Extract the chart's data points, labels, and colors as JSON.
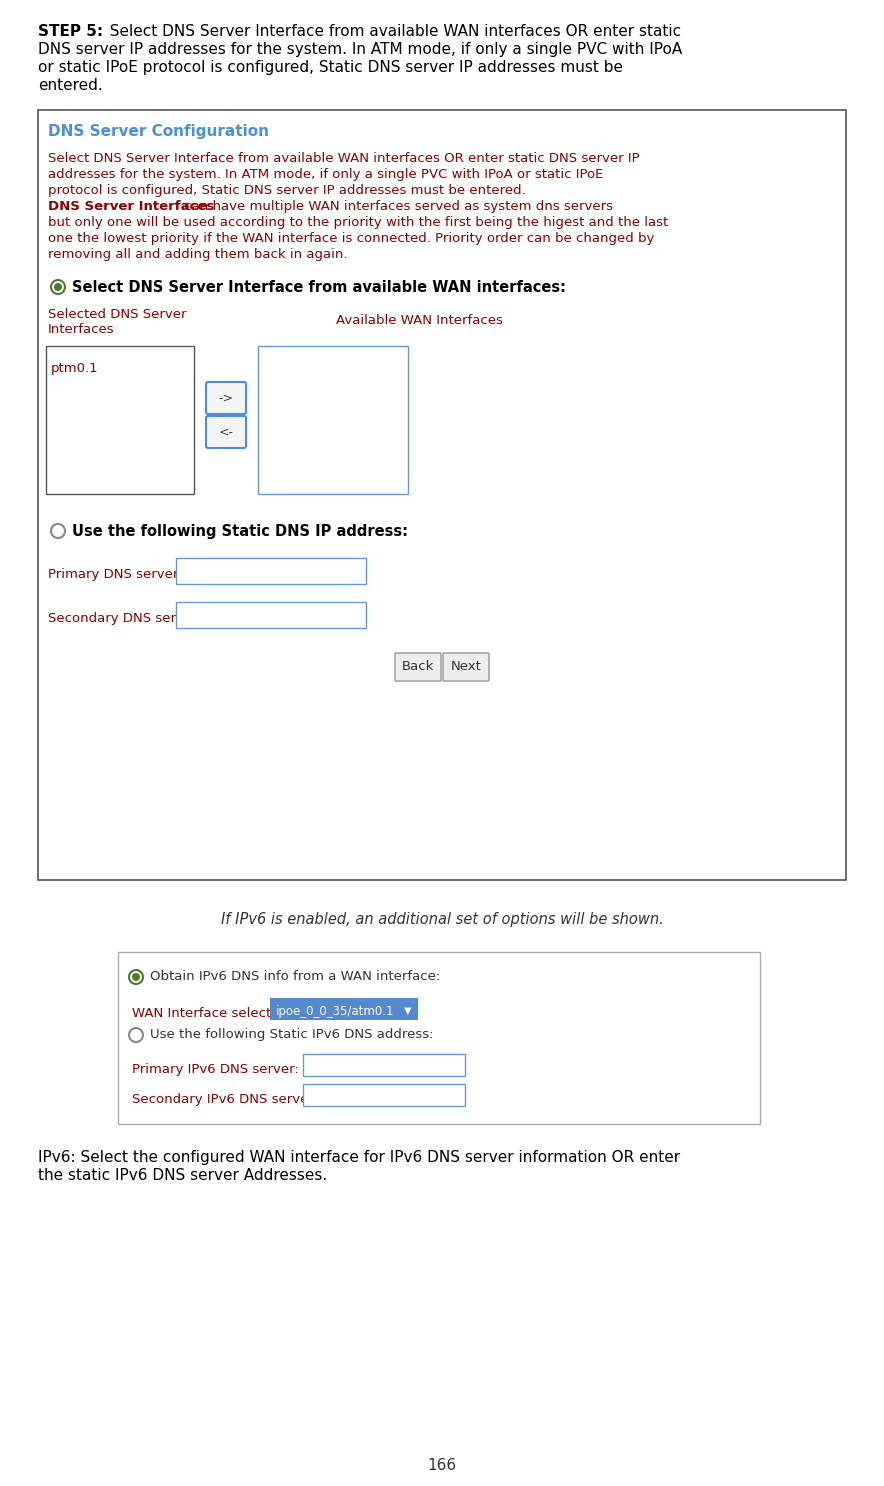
{
  "page_number": "166",
  "bg_color": "#ffffff",
  "text_color_dark": "#000000",
  "text_color_red": "#8b0000",
  "text_color_gray": "#555555",
  "box1_title_color": "#4a90d9",
  "radio_green_edge": "#4a7c2f",
  "radio_green_fill": "#4a7c2f",
  "radio_gray_edge": "#888888",
  "input_border": "#6699cc",
  "btn_border": "#999999",
  "btn_fill": "#eeeeee",
  "arrow_btn_border": "#4a90d9",
  "arrow_btn_fill": "#f5f5f5",
  "listbox1_border": "#555555",
  "listbox2_border": "#6699cc",
  "box1_border": "#555555",
  "box2_border": "#aaaaaa",
  "dropdown_bg": "#5588cc",
  "dropdown_text": "#ffffff",
  "step_bold": "STEP 5:",
  "step_line1": "  Select DNS Server Interface from available WAN interfaces OR enter static",
  "step_line2": "DNS server IP addresses for the system. In ATM mode, if only a single PVC with IPoA",
  "step_line3": "or static IPoE protocol is configured, Static DNS server IP addresses must be",
  "step_line4": "entered.",
  "box1_title": "DNS Server Configuration",
  "inner_line1": "Select DNS Server Interface from available WAN interfaces OR enter static DNS server IP",
  "inner_line2": "addresses for the system. In ATM mode, if only a single PVC with IPoA or static IPoE",
  "inner_line3": "protocol is configured, Static DNS server IP addresses must be entered.",
  "inner_bold": "DNS Server Interfaces",
  "inner_line4b": " can have multiple WAN interfaces served as system dns servers",
  "inner_line5": "but only one will be used according to the priority with the first being the higest and the last",
  "inner_line6": "one the lowest priority if the WAN interface is connected. Priority order can be changed by",
  "inner_line7": "removing all and adding them back in again.",
  "radio1_label": "Select DNS Server Interface from available WAN interfaces:",
  "col_left_label": "Selected DNS Server\nInterfaces",
  "col_right_label": "Available WAN Interfaces",
  "ptm_text": "ptm0.1",
  "arrow_right": "->",
  "arrow_left": "<-",
  "radio2_label": "Use the following Static DNS IP address:",
  "primary_dns_label": "Primary DNS server:",
  "secondary_dns_label": "Secondary DNS server:",
  "back_btn": "Back",
  "next_btn": "Next",
  "caption_text": "If IPv6 is enabled, an additional set of options will be shown.",
  "box2_radio1_label": "Obtain IPv6 DNS info from a WAN interface:",
  "wan_label": "WAN Interface selected:",
  "wan_value": "ipoe_0_0_35/atm0.1",
  "box2_radio2_label": "Use the following Static IPv6 DNS address:",
  "primary_ipv6_label": "Primary IPv6 DNS server:",
  "secondary_ipv6_label": "Secondary IPv6 DNS server:",
  "footer_line1": "IPv6: Select the configured WAN interface for IPv6 DNS server information OR enter",
  "footer_line2": "the static IPv6 DNS server Addresses."
}
